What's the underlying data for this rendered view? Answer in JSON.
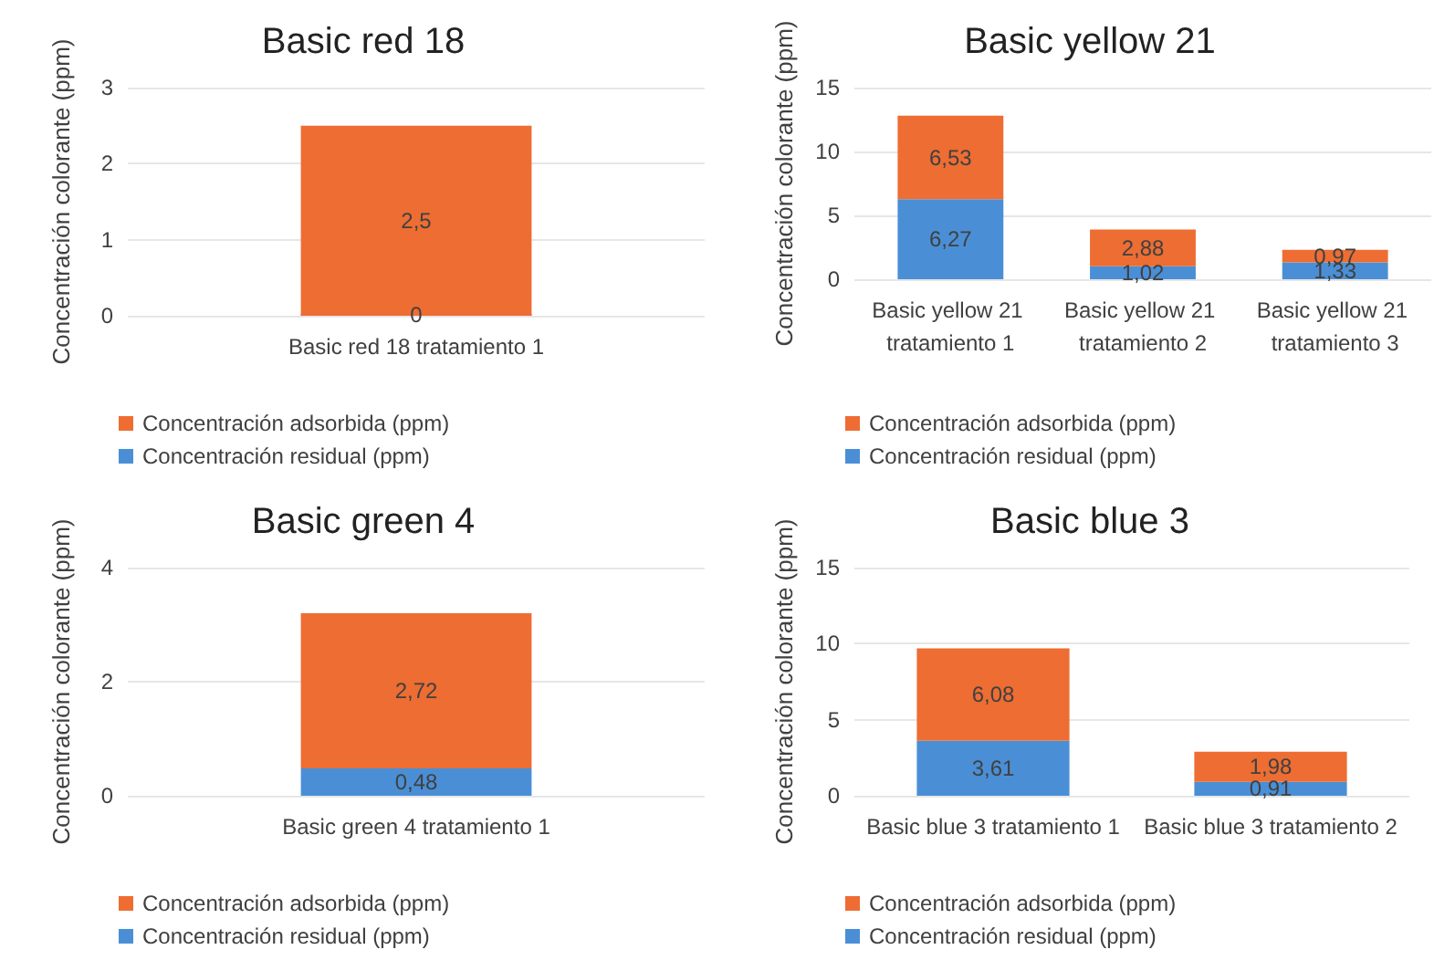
{
  "chart_data": [
    {
      "type": "bar",
      "title": "Basic red 18",
      "ylabel": "Concentración colorante (ppm)",
      "categories": [
        "Basic red 18 tratamiento 1"
      ],
      "stacked": true,
      "series": [
        {
          "name": "Concentración residual (ppm)",
          "color": "#4a8fd6",
          "values": [
            0
          ],
          "value_labels": [
            "0"
          ]
        },
        {
          "name": "Concentración adsorbida (ppm)",
          "color": "#ed6d33",
          "values": [
            2.5
          ],
          "value_labels": [
            "2,5"
          ]
        }
      ],
      "ylim": [
        0,
        3
      ],
      "yticks": [
        0,
        1,
        2,
        3
      ],
      "grid": "y",
      "legend": "bottom"
    },
    {
      "type": "bar",
      "title": "Basic yellow 21",
      "ylabel": "Concentración colorante (ppm)",
      "categories": [
        "Basic yellow 21 tratamiento 1",
        "Basic yellow 21 tratamiento 2",
        "Basic yellow 21 tratamiento 3"
      ],
      "stacked": true,
      "series": [
        {
          "name": "Concentración residual (ppm)",
          "color": "#4a8fd6",
          "values": [
            6.27,
            1.02,
            1.33
          ],
          "value_labels": [
            "6,27",
            "1,02",
            "1,33"
          ]
        },
        {
          "name": "Concentración adsorbida (ppm)",
          "color": "#ed6d33",
          "values": [
            6.53,
            2.88,
            0.97
          ],
          "value_labels": [
            "6,53",
            "2,88",
            "0,97"
          ]
        }
      ],
      "ylim": [
        0,
        15
      ],
      "yticks": [
        0,
        5,
        10,
        15
      ],
      "grid": "y",
      "legend": "bottom"
    },
    {
      "type": "bar",
      "title": "Basic green 4",
      "ylabel": "Concentración colorante (ppm)",
      "categories": [
        "Basic green 4 tratamiento 1"
      ],
      "stacked": true,
      "series": [
        {
          "name": "Concentración residual (ppm)",
          "color": "#4a8fd6",
          "values": [
            0.48
          ],
          "value_labels": [
            "0,48"
          ]
        },
        {
          "name": "Concentración adsorbida (ppm)",
          "color": "#ed6d33",
          "values": [
            2.72
          ],
          "value_labels": [
            "2,72"
          ]
        }
      ],
      "ylim": [
        0,
        4
      ],
      "yticks": [
        0,
        2,
        4
      ],
      "grid": "y",
      "legend": "bottom"
    },
    {
      "type": "bar",
      "title": "Basic blue 3",
      "ylabel": "Concentración colorante (ppm)",
      "categories": [
        "Basic blue 3 tratamiento 1",
        "Basic blue 3 tratamiento 2"
      ],
      "stacked": true,
      "series": [
        {
          "name": "Concentración residual (ppm)",
          "color": "#4a8fd6",
          "values": [
            3.61,
            0.91
          ],
          "value_labels": [
            "3,61",
            "0,91"
          ]
        },
        {
          "name": "Concentración adsorbida (ppm)",
          "color": "#ed6d33",
          "values": [
            6.08,
            1.98
          ],
          "value_labels": [
            "6,08",
            "1,98"
          ]
        }
      ],
      "ylim": [
        0,
        15
      ],
      "yticks": [
        0,
        5,
        10,
        15
      ],
      "grid": "y",
      "legend": "bottom"
    }
  ]
}
